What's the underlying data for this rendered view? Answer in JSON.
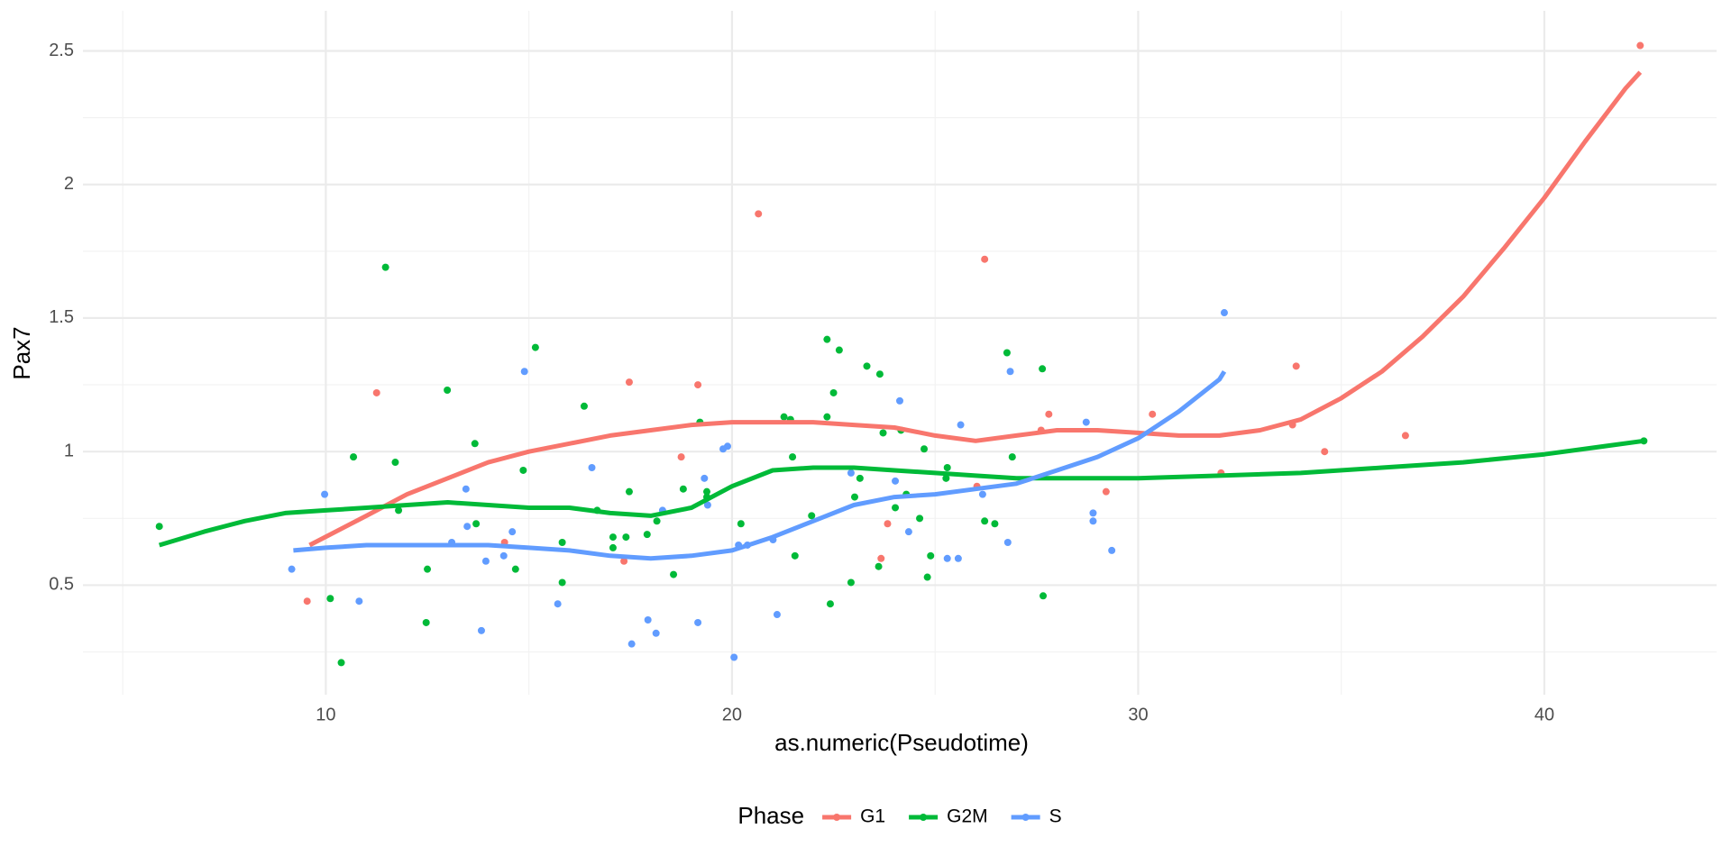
{
  "chart_data": {
    "type": "scatter",
    "x_label": "as.numeric(Pseudotime)",
    "y_label": "Pax7",
    "legend_title": "Phase",
    "legend_position": "bottom",
    "grid": true,
    "xlim": [
      4.02,
      44.24
    ],
    "ylim": [
      0.09,
      2.65
    ],
    "xticks": [
      10,
      20,
      30,
      40
    ],
    "yticks": [
      0.5,
      1,
      1.5,
      2,
      2.5
    ],
    "minor_xticks": [
      5,
      15,
      25,
      35
    ],
    "minor_yticks": [
      0.25,
      0.75,
      1.25,
      1.75,
      2.25
    ],
    "series": [
      {
        "name": "G1",
        "color": "#f8766d",
        "x": [
          9.54,
          11.25,
          14.4,
          17.34,
          17.47,
          18.75,
          19.16,
          20.65,
          23.67,
          23.83,
          26.03,
          26.22,
          27.61,
          27.8,
          29.21,
          30.35,
          32.04,
          33.8,
          33.89,
          34.59,
          36.58,
          42.36
        ],
        "values": [
          0.44,
          1.22,
          0.66,
          0.59,
          1.26,
          0.98,
          1.25,
          1.89,
          0.6,
          0.73,
          0.87,
          1.72,
          1.08,
          1.14,
          0.85,
          1.14,
          0.92,
          1.1,
          1.32,
          1.0,
          1.06,
          2.52
        ],
        "fit_x": [
          9.6,
          11,
          12,
          13,
          14,
          15,
          16,
          17,
          18,
          19,
          20,
          21,
          22,
          23,
          24,
          25,
          26,
          27,
          28,
          29,
          30,
          31,
          32,
          33,
          34,
          35,
          36,
          37,
          38,
          39,
          40,
          41,
          42,
          42.36
        ],
        "fit_values": [
          0.65,
          0.76,
          0.84,
          0.9,
          0.96,
          1.0,
          1.03,
          1.06,
          1.08,
          1.1,
          1.11,
          1.11,
          1.11,
          1.1,
          1.09,
          1.06,
          1.04,
          1.06,
          1.08,
          1.08,
          1.07,
          1.06,
          1.06,
          1.08,
          1.12,
          1.2,
          1.3,
          1.43,
          1.58,
          1.76,
          1.95,
          2.16,
          2.36,
          2.42
        ]
      },
      {
        "name": "G2M",
        "color": "#00ba38",
        "x": [
          5.9,
          10.38,
          10.11,
          10.68,
          11.47,
          11.71,
          11.79,
          12.5,
          12.47,
          12.99,
          13.67,
          13.7,
          14.67,
          14.86,
          15.16,
          15.82,
          15.82,
          16.36,
          16.68,
          17.07,
          17.07,
          17.39,
          17.47,
          18.15,
          17.91,
          18.56,
          18.8,
          19.21,
          19.38,
          19.38,
          20.22,
          21.28,
          21.44,
          21.49,
          21.55,
          21.96,
          22.34,
          22.34,
          22.42,
          22.5,
          22.64,
          22.93,
          23.02,
          23.15,
          23.61,
          23.32,
          23.64,
          23.72,
          24.02,
          24.16,
          24.29,
          24.62,
          24.73,
          24.81,
          24.89,
          25.27,
          25.3,
          26.22,
          26.47,
          26.77,
          26.9,
          27.64,
          27.66,
          42.45
        ],
        "values": [
          0.72,
          0.21,
          0.45,
          0.98,
          1.69,
          0.96,
          0.78,
          0.56,
          0.36,
          1.23,
          1.03,
          0.73,
          0.56,
          0.93,
          1.39,
          0.66,
          0.51,
          1.17,
          0.78,
          0.68,
          0.64,
          0.68,
          0.85,
          0.74,
          0.69,
          0.54,
          0.86,
          1.11,
          0.85,
          0.83,
          0.73,
          1.13,
          1.12,
          0.98,
          0.61,
          0.76,
          1.42,
          1.13,
          0.43,
          1.22,
          1.38,
          0.51,
          0.83,
          0.9,
          0.57,
          1.32,
          1.29,
          1.07,
          0.79,
          1.08,
          0.84,
          0.75,
          1.01,
          0.53,
          0.61,
          0.9,
          0.94,
          0.74,
          0.73,
          1.37,
          0.98,
          1.31,
          0.46,
          1.04
        ],
        "fit_x": [
          5.9,
          7,
          8,
          9,
          10,
          11,
          12,
          13,
          14,
          15,
          16,
          17,
          18,
          19,
          20,
          21,
          22,
          23,
          24,
          25,
          26,
          27,
          28,
          30,
          32,
          34,
          36,
          38,
          40,
          42.45
        ],
        "fit_values": [
          0.65,
          0.7,
          0.74,
          0.77,
          0.78,
          0.79,
          0.8,
          0.81,
          0.8,
          0.79,
          0.79,
          0.77,
          0.76,
          0.79,
          0.87,
          0.93,
          0.94,
          0.94,
          0.93,
          0.92,
          0.91,
          0.9,
          0.9,
          0.9,
          0.91,
          0.92,
          0.94,
          0.96,
          0.99,
          1.04
        ]
      },
      {
        "name": "S",
        "color": "#619cff",
        "x": [
          9.16,
          9.97,
          10.82,
          13.45,
          13.1,
          13.48,
          13.83,
          13.94,
          14.38,
          14.59,
          14.89,
          15.71,
          16.55,
          17.53,
          17.93,
          18.13,
          18.29,
          19.16,
          19.32,
          19.4,
          19.78,
          19.89,
          20.05,
          20.16,
          20.38,
          21.01,
          21.11,
          22.93,
          24.02,
          24.13,
          24.35,
          25.3,
          25.57,
          25.63,
          26.17,
          26.79,
          26.85,
          28.72,
          28.89,
          28.89,
          29.35,
          32.12
        ],
        "values": [
          0.56,
          0.84,
          0.44,
          0.86,
          0.66,
          0.72,
          0.33,
          0.59,
          0.61,
          0.7,
          1.3,
          0.43,
          0.94,
          0.28,
          0.37,
          0.32,
          0.78,
          0.36,
          0.9,
          0.8,
          1.01,
          1.02,
          0.23,
          0.65,
          0.65,
          0.67,
          0.39,
          0.92,
          0.89,
          1.19,
          0.7,
          0.6,
          0.6,
          1.1,
          0.84,
          0.66,
          1.3,
          1.11,
          0.77,
          0.74,
          0.63,
          1.52
        ],
        "fit_x": [
          9.2,
          10,
          11,
          12,
          13,
          14,
          15,
          16,
          17,
          18,
          19,
          20,
          21,
          22,
          23,
          24,
          25,
          26,
          27,
          28,
          29,
          30,
          31,
          32,
          32.12
        ],
        "fit_values": [
          0.63,
          0.64,
          0.65,
          0.65,
          0.65,
          0.65,
          0.64,
          0.63,
          0.61,
          0.6,
          0.61,
          0.63,
          0.68,
          0.74,
          0.8,
          0.83,
          0.84,
          0.86,
          0.88,
          0.93,
          0.98,
          1.05,
          1.15,
          1.27,
          1.3
        ]
      }
    ]
  }
}
